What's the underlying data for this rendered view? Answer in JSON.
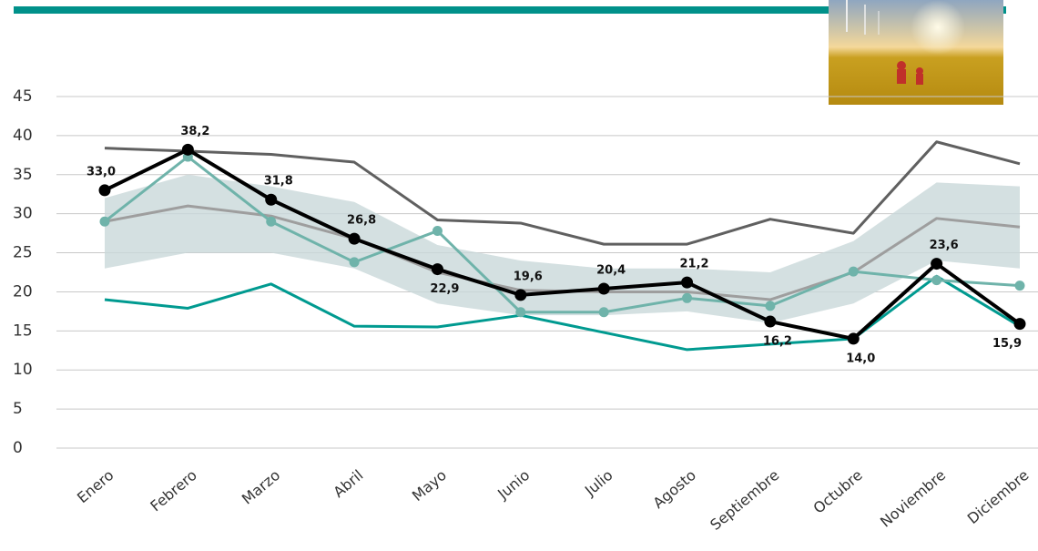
{
  "chart_data": {
    "type": "line",
    "categories": [
      "Enero",
      "Febrero",
      "Marzo",
      "Abril",
      "Mayo",
      "Junio",
      "Julio",
      "Agosto",
      "Septiembre",
      "Octubre",
      "Noviembre",
      "Diciembre"
    ],
    "band": {
      "color": "#c9d8da",
      "upper": [
        32,
        35,
        33.5,
        31.5,
        26,
        24,
        23,
        23,
        22.5,
        26.5,
        34,
        33.5
      ],
      "lower": [
        23,
        25,
        25,
        23,
        18.5,
        17,
        17,
        17.5,
        16,
        18.5,
        24,
        23
      ]
    },
    "series": [
      {
        "color": "#606060",
        "width": 3,
        "markers": false,
        "values": [
          38.4,
          38,
          37.6,
          36.6,
          29.2,
          28.8,
          26.1,
          26.1,
          29.3,
          27.5,
          39.2,
          36.4
        ]
      },
      {
        "color": "#9e9e9e",
        "width": 3,
        "markers": false,
        "values": [
          29,
          31,
          29.7,
          26.8,
          22.5,
          20.2,
          20,
          20,
          19,
          22.5,
          29.4,
          28.3
        ]
      },
      {
        "color": "#009a90",
        "width": 3,
        "markers": false,
        "values": [
          19,
          17.9,
          21,
          15.6,
          15.5,
          17,
          14.8,
          12.6,
          13.3,
          14,
          22,
          15.6
        ]
      },
      {
        "color": "#6fb3aa",
        "width": 3,
        "markers": true,
        "values": [
          29,
          37.3,
          29,
          23.8,
          27.8,
          17.4,
          17.4,
          19.2,
          18.2,
          22.6,
          21.5,
          20.8
        ]
      },
      {
        "color": "#000000",
        "width": 4,
        "markers": true,
        "values": [
          33.0,
          38.2,
          31.8,
          26.8,
          22.9,
          19.6,
          20.4,
          21.2,
          16.2,
          14.0,
          23.6,
          15.9
        ],
        "value_labels": [
          "33,0",
          "38,2",
          "31,8",
          "26,8",
          "22,9",
          "19,6",
          "20,4",
          "21,2",
          "16,2",
          "14,0",
          "23,6",
          "15,9"
        ]
      }
    ],
    "ylim": [
      0,
      45
    ],
    "yticks": [
      0,
      5,
      10,
      15,
      20,
      25,
      30,
      35,
      40,
      45
    ],
    "grid": true
  }
}
